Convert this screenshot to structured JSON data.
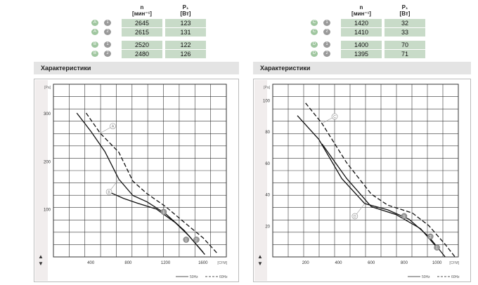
{
  "left_table": {
    "col_n": "n",
    "col_n_unit": "[мин⁻¹]",
    "col_p": "P₁",
    "col_p_unit": "[Вт]",
    "rows": [
      {
        "curve": "A",
        "sys": "1",
        "n": "2645",
        "p": "123"
      },
      {
        "curve": "A",
        "sys": "2",
        "n": "2615",
        "p": "131"
      },
      {
        "curve": "B",
        "sys": "1",
        "n": "2520",
        "p": "122"
      },
      {
        "curve": "B",
        "sys": "2",
        "n": "2480",
        "p": "126"
      }
    ]
  },
  "right_table": {
    "col_n": "n",
    "col_n_unit": "[мин⁻¹]",
    "col_p": "P₁",
    "col_p_unit": "[Вт]",
    "rows": [
      {
        "curve": "C",
        "sys": "1",
        "n": "1420",
        "p": "32"
      },
      {
        "curve": "C",
        "sys": "2",
        "n": "1410",
        "p": "33"
      },
      {
        "curve": "D",
        "sys": "1",
        "n": "1400",
        "p": "70"
      },
      {
        "curve": "D",
        "sys": "2",
        "n": "1395",
        "p": "71"
      }
    ]
  },
  "section_title_left": "Характеристики",
  "section_title_right": "Характеристики",
  "chart_data": [
    {
      "type": "line",
      "xlabel": "[CFM]",
      "ylabel": "[Pa]",
      "xticks": [
        "400",
        "800",
        "1200",
        "1600"
      ],
      "yticks": [
        "100",
        "200",
        "300"
      ],
      "xlim": [
        0,
        1850
      ],
      "ylim": [
        0,
        360
      ],
      "footer_left": "50Hz",
      "footer_right": "60Hz",
      "curve_labels": [
        "A",
        "B",
        "1",
        "2",
        "1",
        "2"
      ],
      "series": [
        {
          "name": "A",
          "dash": true,
          "points": [
            [
              350,
              300
            ],
            [
              500,
              258
            ],
            [
              700,
              218
            ],
            [
              850,
              158
            ],
            [
              1000,
              132
            ],
            [
              1200,
              105
            ],
            [
              1400,
              72
            ],
            [
              1600,
              40
            ],
            [
              1750,
              8
            ]
          ]
        },
        {
          "name": "B",
          "dash": false,
          "points": [
            [
              250,
              300
            ],
            [
              400,
              262
            ],
            [
              550,
              220
            ],
            [
              700,
              162
            ],
            [
              850,
              128
            ],
            [
              1000,
              115
            ],
            [
              1200,
              90
            ],
            [
              1400,
              55
            ],
            [
              1600,
              10
            ]
          ]
        },
        {
          "name": "B2",
          "dash": false,
          "points": [
            [
              600,
              135
            ],
            [
              750,
              122
            ],
            [
              900,
              112
            ],
            [
              1100,
              100
            ],
            [
              1300,
              72
            ],
            [
              1450,
              44
            ],
            [
              1620,
              5
            ]
          ]
        }
      ],
      "operating_points": [
        {
          "label": "1",
          "x": 1180,
          "y": 94
        },
        {
          "label": "2",
          "x": 1530,
          "y": 36
        },
        {
          "label": "1",
          "x": 1420,
          "y": 36
        }
      ]
    },
    {
      "type": "line",
      "xlabel": "[CFM]",
      "ylabel": "[Pa]",
      "xticks": [
        "200",
        "400",
        "600",
        "800",
        "1000"
      ],
      "yticks": [
        "20",
        "40",
        "60",
        "80",
        "100"
      ],
      "xlim": [
        0,
        1130
      ],
      "ylim": [
        0,
        110
      ],
      "footer_left": "50Hz",
      "footer_right": "60Hz",
      "curve_labels": [
        "C",
        "D",
        "1",
        "2",
        "1"
      ],
      "series": [
        {
          "name": "C",
          "dash": true,
          "points": [
            [
              200,
              98
            ],
            [
              300,
              85
            ],
            [
              450,
              60
            ],
            [
              600,
              40
            ],
            [
              700,
              33
            ],
            [
              850,
              28
            ],
            [
              950,
              20
            ],
            [
              1050,
              8
            ],
            [
              1110,
              0
            ]
          ]
        },
        {
          "name": "D",
          "dash": false,
          "points": [
            [
              150,
              90
            ],
            [
              280,
              75
            ],
            [
              420,
              50
            ],
            [
              560,
              34
            ],
            [
              700,
              30
            ],
            [
              830,
              24
            ],
            [
              950,
              13
            ],
            [
              1050,
              0
            ]
          ]
        },
        {
          "name": "D2",
          "dash": false,
          "points": [
            [
              300,
              72
            ],
            [
              450,
              50
            ],
            [
              600,
              32
            ],
            [
              750,
              27
            ],
            [
              900,
              18
            ],
            [
              1000,
              6
            ]
          ]
        }
      ],
      "operating_points": [
        {
          "label": "1",
          "x": 800,
          "y": 26
        },
        {
          "label": "2",
          "x": 960,
          "y": 13
        },
        {
          "label": "1",
          "x": 1000,
          "y": 6
        }
      ]
    }
  ]
}
